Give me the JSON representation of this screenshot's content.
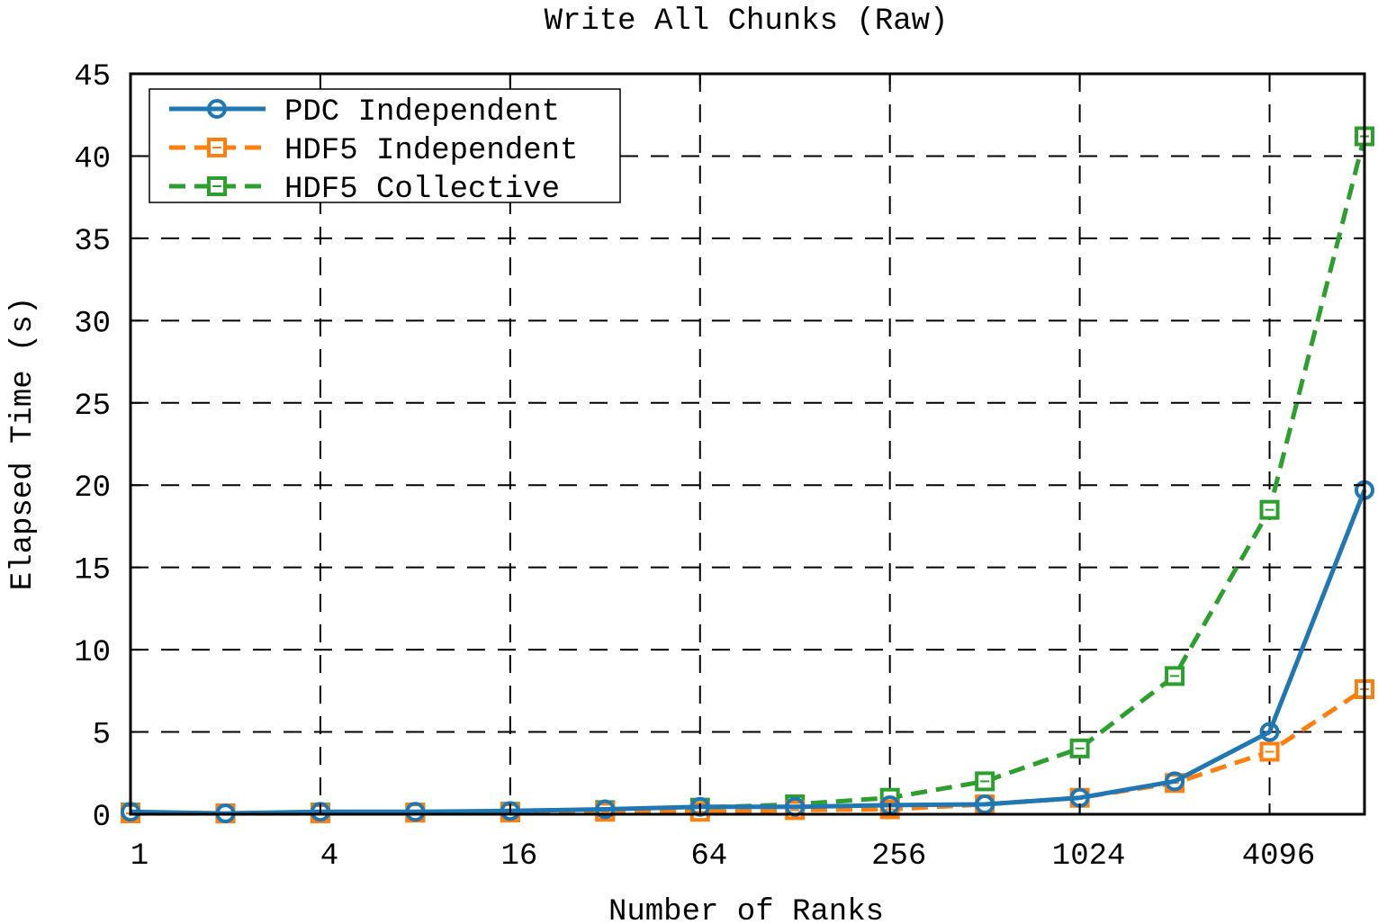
{
  "chart_data": {
    "type": "line",
    "title": "Write All Chunks (Raw)",
    "xlabel": "Number of Ranks",
    "ylabel": "Elapsed Time (s)",
    "xscale": "log2",
    "xlim": [
      1,
      8192
    ],
    "ylim": [
      0,
      45
    ],
    "x_ticks": [
      1,
      4,
      16,
      64,
      256,
      1024,
      4096
    ],
    "x_tick_labels": [
      "1",
      "4",
      "16",
      "64",
      "256",
      "1024",
      "4096"
    ],
    "y_ticks": [
      0,
      5,
      10,
      15,
      20,
      25,
      30,
      35,
      40,
      45
    ],
    "y_tick_labels": [
      "0",
      "5",
      "10",
      "15",
      "20",
      "25",
      "30",
      "35",
      "40",
      "45"
    ],
    "grid": true,
    "legend_position": "top-left",
    "x": [
      1,
      2,
      4,
      8,
      16,
      32,
      64,
      128,
      256,
      512,
      1024,
      2048,
      4096,
      8192
    ],
    "series": [
      {
        "name": "PDC Independent",
        "color": "#1f77b4",
        "marker": "circle",
        "dash": "solid",
        "values": [
          0.15,
          0.05,
          0.15,
          0.15,
          0.2,
          0.3,
          0.45,
          0.45,
          0.55,
          0.6,
          1.0,
          2.0,
          5.0,
          19.7
        ]
      },
      {
        "name": "HDF5 Independent",
        "color": "#ff7f0e",
        "marker": "square",
        "dash": "dashed",
        "values": [
          0.05,
          0.05,
          0.05,
          0.1,
          0.1,
          0.15,
          0.15,
          0.25,
          0.3,
          0.6,
          1.0,
          1.9,
          3.8,
          7.6
        ]
      },
      {
        "name": "HDF5 Collective",
        "color": "#2ca02c",
        "marker": "square",
        "dash": "dashed",
        "values": [
          0.1,
          0.05,
          0.1,
          0.1,
          0.15,
          0.25,
          0.4,
          0.6,
          1.0,
          2.0,
          4.0,
          8.4,
          18.5,
          41.2
        ]
      }
    ]
  }
}
